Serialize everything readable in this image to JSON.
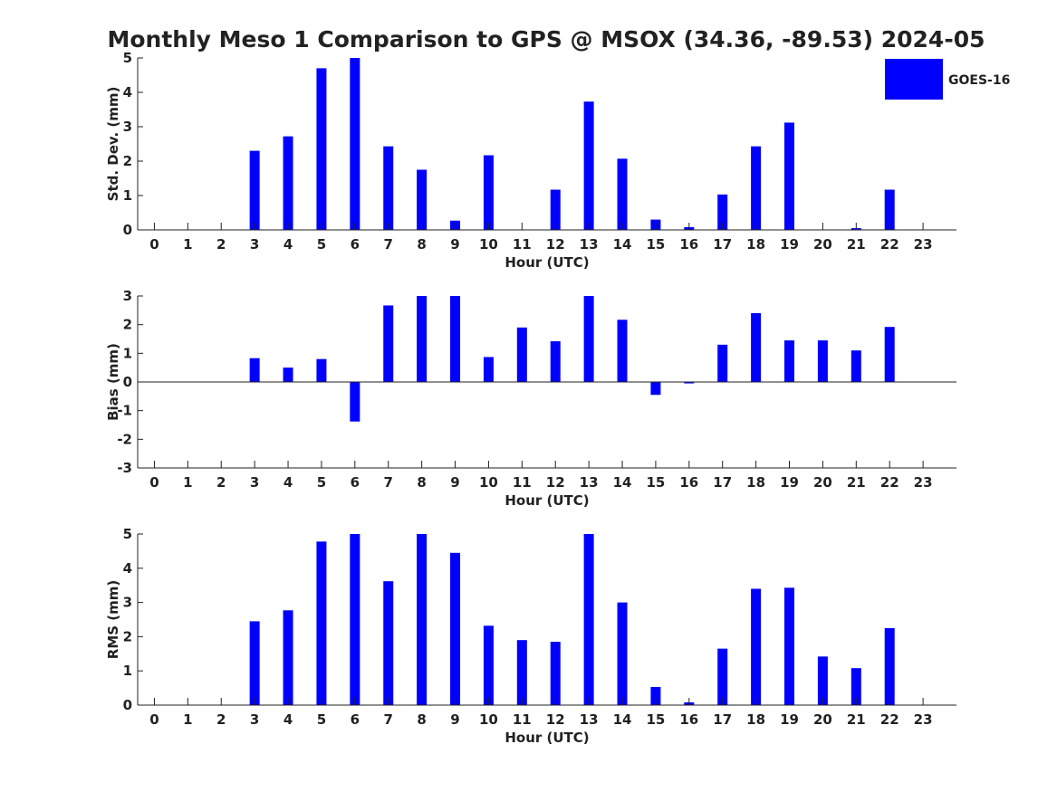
{
  "title": "Monthly Meso 1 Comparison to GPS @ MSOX (34.36, -89.53) 2024-05",
  "legend": {
    "label": "GOES-16",
    "color": "#0000ff",
    "placement": "top-right"
  },
  "chart_data": [
    {
      "type": "bar",
      "title": "",
      "xlabel": "Hour (UTC)",
      "ylabel": "Std. Dev. (mm)",
      "ylim": [
        0,
        5
      ],
      "yticks": [
        0,
        1,
        2,
        3,
        4,
        5
      ],
      "grid": false,
      "categories": [
        0,
        1,
        2,
        3,
        4,
        5,
        6,
        7,
        8,
        9,
        10,
        11,
        12,
        13,
        14,
        15,
        16,
        17,
        18,
        19,
        20,
        21,
        22,
        23
      ],
      "series": [
        {
          "name": "GOES-16",
          "color": "#0000ff",
          "values": [
            null,
            null,
            null,
            2.3,
            2.72,
            4.7,
            5.0,
            2.43,
            1.75,
            0.27,
            2.17,
            null,
            1.17,
            3.73,
            2.07,
            0.3,
            0.08,
            1.03,
            2.43,
            3.12,
            null,
            0.05,
            1.17,
            null
          ]
        }
      ]
    },
    {
      "type": "bar",
      "title": "",
      "xlabel": "Hour (UTC)",
      "ylabel": "Bias (mm)",
      "ylim": [
        -3,
        3
      ],
      "yticks": [
        -3,
        -2,
        -1,
        0,
        1,
        2,
        3
      ],
      "grid": false,
      "categories": [
        0,
        1,
        2,
        3,
        4,
        5,
        6,
        7,
        8,
        9,
        10,
        11,
        12,
        13,
        14,
        15,
        16,
        17,
        18,
        19,
        20,
        21,
        22,
        23
      ],
      "series": [
        {
          "name": "GOES-16",
          "color": "#0000ff",
          "values": [
            null,
            null,
            null,
            0.83,
            0.5,
            0.8,
            -1.38,
            2.67,
            3.0,
            3.0,
            0.87,
            1.9,
            1.42,
            3.0,
            2.17,
            -0.45,
            -0.05,
            1.3,
            2.4,
            1.45,
            1.45,
            1.1,
            1.92,
            null
          ]
        }
      ]
    },
    {
      "type": "bar",
      "title": "",
      "xlabel": "Hour (UTC)",
      "ylabel": "RMS (mm)",
      "ylim": [
        0,
        5
      ],
      "yticks": [
        0,
        1,
        2,
        3,
        4,
        5
      ],
      "grid": false,
      "categories": [
        0,
        1,
        2,
        3,
        4,
        5,
        6,
        7,
        8,
        9,
        10,
        11,
        12,
        13,
        14,
        15,
        16,
        17,
        18,
        19,
        20,
        21,
        22,
        23
      ],
      "series": [
        {
          "name": "GOES-16",
          "color": "#0000ff",
          "values": [
            null,
            null,
            null,
            2.45,
            2.77,
            4.78,
            5.0,
            3.62,
            5.0,
            4.45,
            2.32,
            1.9,
            1.85,
            5.0,
            3.0,
            0.53,
            0.08,
            1.65,
            3.4,
            3.43,
            1.42,
            1.08,
            2.25,
            null
          ]
        }
      ]
    }
  ]
}
